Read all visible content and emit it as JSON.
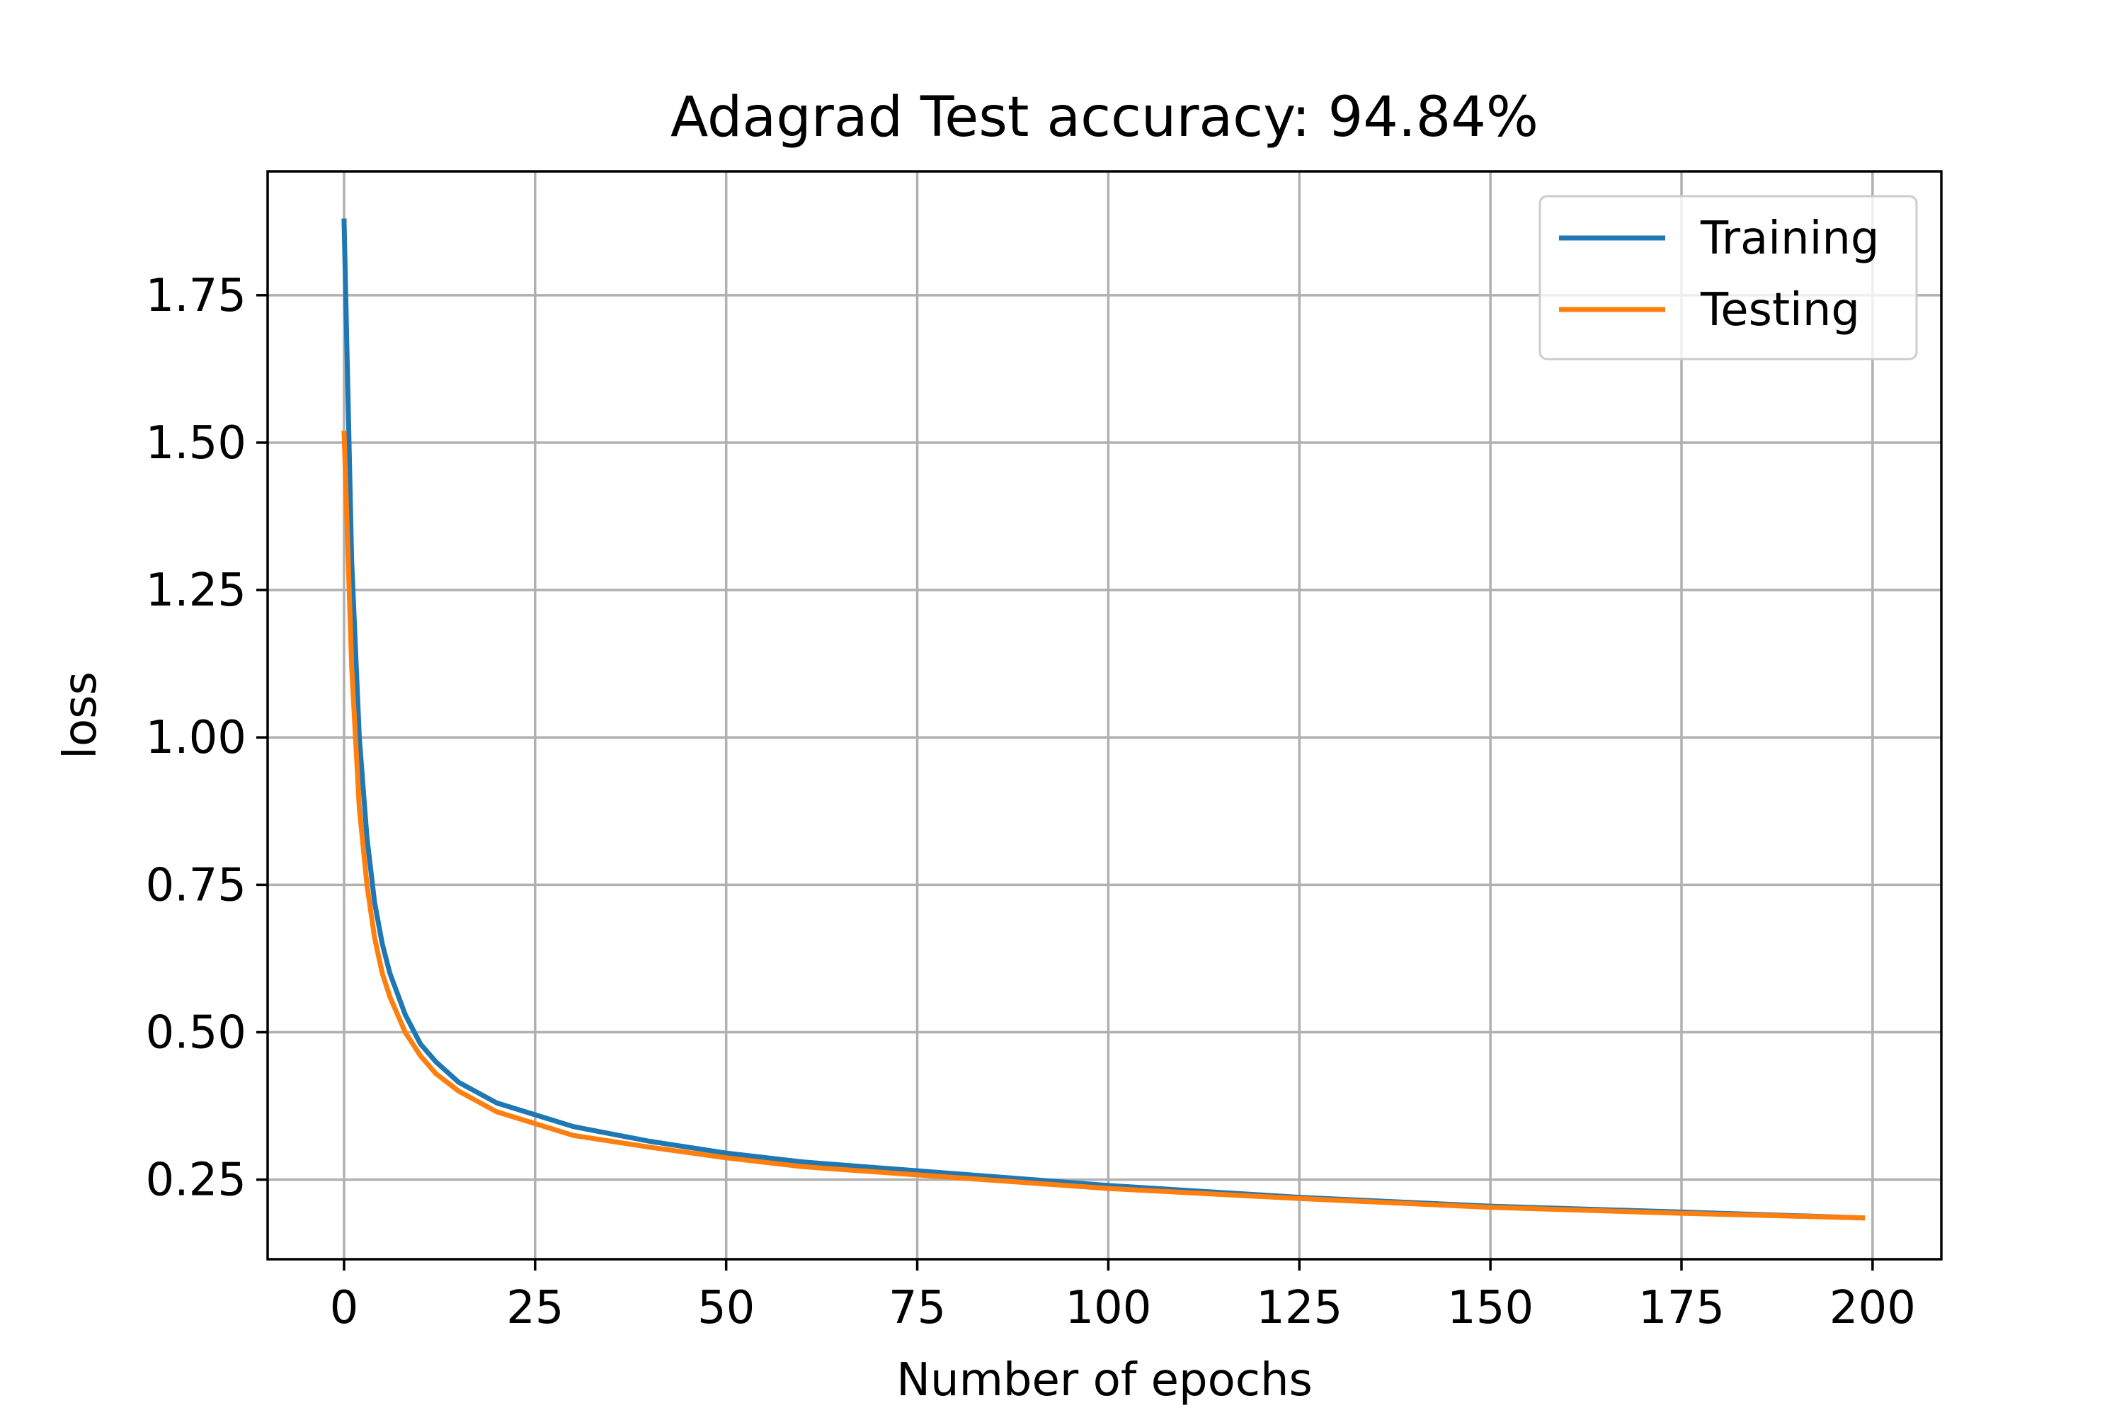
{
  "chart_data": {
    "type": "line",
    "title": "Adagrad Test accuracy: 94.84%",
    "xlabel": "Number of epochs",
    "ylabel": "loss",
    "xlim": [
      -10,
      209
    ],
    "ylim": [
      0.115,
      1.96
    ],
    "xticks": [
      0,
      25,
      50,
      75,
      100,
      125,
      150,
      175,
      200
    ],
    "xtick_labels": [
      "0",
      "25",
      "50",
      "75",
      "100",
      "125",
      "150",
      "175",
      "200"
    ],
    "yticks": [
      0.25,
      0.5,
      0.75,
      1.0,
      1.25,
      1.5,
      1.75
    ],
    "ytick_labels": [
      "0.25",
      "0.50",
      "0.75",
      "1.00",
      "1.25",
      "1.50",
      "1.75"
    ],
    "grid": true,
    "legend": "top-right",
    "colors": {
      "training": "#1f77b4",
      "testing": "#ff7f0e",
      "grid": "#b0b0b0",
      "axes": "#000000"
    },
    "series": [
      {
        "name": "Training",
        "x": [
          0,
          1,
          2,
          3,
          4,
          5,
          6,
          8,
          10,
          12,
          15,
          20,
          25,
          30,
          40,
          50,
          60,
          75,
          100,
          125,
          150,
          175,
          199
        ],
        "values": [
          1.88,
          1.3,
          1.0,
          0.83,
          0.72,
          0.65,
          0.6,
          0.53,
          0.48,
          0.45,
          0.415,
          0.38,
          0.36,
          0.34,
          0.315,
          0.295,
          0.28,
          0.265,
          0.24,
          0.22,
          0.205,
          0.195,
          0.185
        ]
      },
      {
        "name": "Testing",
        "x": [
          0,
          1,
          2,
          3,
          4,
          5,
          6,
          8,
          10,
          12,
          15,
          20,
          25,
          30,
          40,
          50,
          60,
          75,
          100,
          125,
          150,
          175,
          199
        ],
        "values": [
          1.52,
          1.12,
          0.88,
          0.75,
          0.66,
          0.6,
          0.56,
          0.5,
          0.46,
          0.43,
          0.4,
          0.365,
          0.345,
          0.325,
          0.305,
          0.287,
          0.272,
          0.258,
          0.235,
          0.218,
          0.203,
          0.193,
          0.185
        ]
      }
    ]
  }
}
